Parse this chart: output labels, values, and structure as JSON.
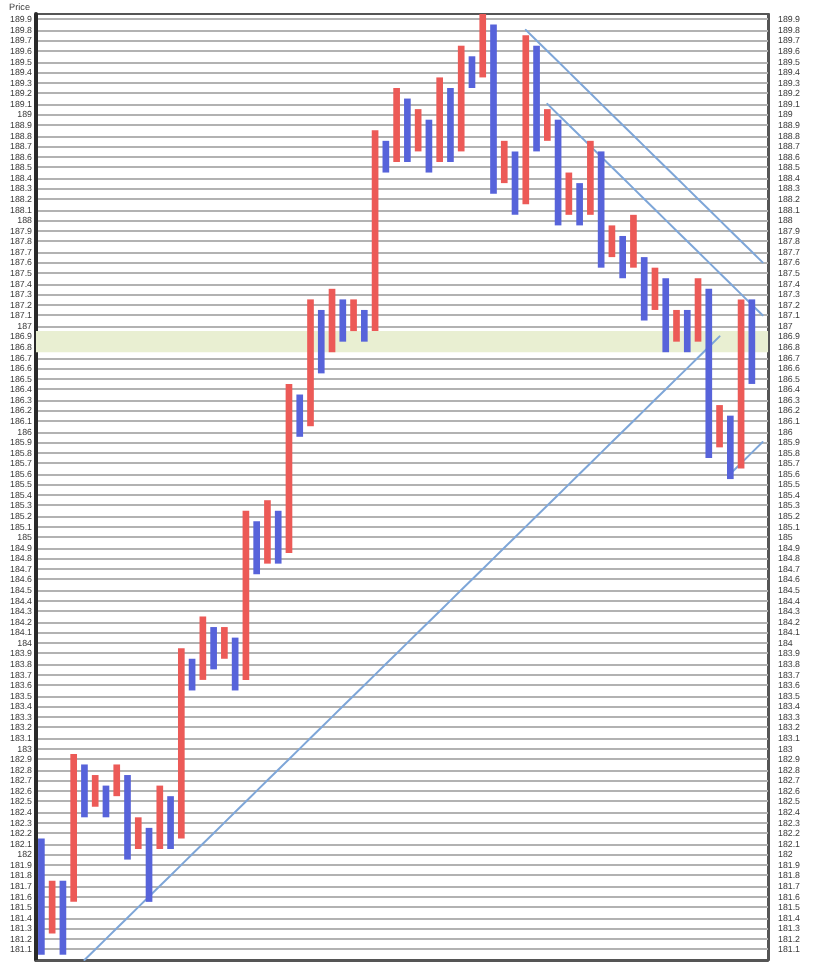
{
  "chart_data": {
    "type": "bar",
    "ylabel": "Price",
    "categories": [
      null,
      null,
      null,
      null,
      null,
      null,
      null,
      null,
      null,
      null,
      null,
      null,
      null,
      null,
      null,
      null,
      null,
      null,
      null,
      null,
      null,
      null,
      null,
      null,
      null,
      null,
      null,
      null,
      null,
      null,
      null,
      null,
      null,
      null,
      null,
      null,
      null,
      null,
      null,
      null,
      null,
      null,
      null,
      null,
      null,
      null,
      null,
      null,
      null,
      null,
      null,
      null,
      null,
      null,
      null,
      null,
      null,
      null,
      null,
      null,
      null,
      null,
      null,
      null,
      null,
      null,
      null,
      null
    ],
    "ylim": [
      181,
      189.95
    ],
    "y2lim": [
      181,
      189.95
    ],
    "yticks": [
      181.1,
      181.2,
      181.3,
      181.4,
      181.5,
      181.6,
      181.7,
      181.8,
      181.9,
      182,
      182.1,
      182.2,
      182.3,
      182.4,
      182.5,
      182.6,
      182.7,
      182.8,
      182.9,
      183,
      183.1,
      183.2,
      183.3,
      183.4,
      183.5,
      183.6,
      183.7,
      183.8,
      183.9,
      184,
      184.1,
      184.2,
      184.3,
      184.4,
      184.5,
      184.6,
      184.7,
      184.8,
      184.9,
      185,
      185.1,
      185.2,
      185.3,
      185.4,
      185.5,
      185.6,
      185.7,
      185.8,
      185.9,
      186,
      186.1,
      186.2,
      186.3,
      186.4,
      186.5,
      186.6,
      186.7,
      186.8,
      186.9,
      187,
      187.1,
      187.2,
      187.3,
      187.4,
      187.5,
      187.6,
      187.7,
      187.8,
      187.9,
      188,
      188.1,
      188.2,
      188.3,
      188.4,
      188.5,
      188.6,
      188.7,
      188.8,
      188.9,
      189,
      189.1,
      189.2,
      189.3,
      189.4,
      189.5,
      189.6,
      189.7,
      189.8,
      189.9
    ],
    "y2ticks": [
      181.1,
      181.2,
      181.3,
      181.4,
      181.5,
      181.6,
      181.7,
      181.8,
      181.9,
      182,
      182.1,
      182.2,
      182.3,
      182.4,
      182.5,
      182.6,
      182.7,
      182.8,
      182.9,
      183,
      183.1,
      183.2,
      183.3,
      183.4,
      183.5,
      183.6,
      183.7,
      183.8,
      183.9,
      184,
      184.1,
      184.2,
      184.3,
      184.4,
      184.5,
      184.6,
      184.7,
      184.8,
      184.9,
      185,
      185.1,
      185.2,
      185.3,
      185.4,
      185.5,
      185.6,
      185.7,
      185.8,
      185.9,
      186,
      186.1,
      186.2,
      186.3,
      186.4,
      186.5,
      186.6,
      186.7,
      186.8,
      186.9,
      187,
      187.1,
      187.2,
      187.3,
      187.4,
      187.5,
      187.6,
      187.7,
      187.8,
      187.9,
      188,
      188.1,
      188.2,
      188.3,
      188.4,
      188.5,
      188.6,
      188.7,
      188.8,
      188.9,
      189,
      189.1,
      189.2,
      189.3,
      189.4,
      189.5,
      189.6,
      189.7,
      189.8,
      189.9
    ],
    "tick_labels": "y",
    "grid": "y",
    "bands": [
      {
        "axis": "y",
        "from": 186.75,
        "to": 186.95,
        "color": "#e9efd2"
      }
    ],
    "series": [
      {
        "color": "#ec5a57",
        "base": [
          null,
          181.25,
          null,
          181.55,
          null,
          182.45,
          null,
          182.55,
          null,
          182.05,
          null,
          182.05,
          null,
          182.15,
          null,
          183.65,
          null,
          183.85,
          null,
          183.65,
          null,
          184.75,
          null,
          184.85,
          null,
          186.05,
          null,
          186.75,
          null,
          186.95,
          null,
          186.95,
          null,
          188.55,
          null,
          188.65,
          null,
          188.55,
          null,
          188.65,
          null,
          189.35,
          null,
          188.35,
          null,
          188.15,
          null,
          188.75,
          null,
          188.05,
          null,
          188.05,
          null,
          187.65,
          null,
          187.55,
          null,
          187.15,
          null,
          186.85,
          null,
          186.85,
          null,
          185.85,
          null,
          185.65,
          null,
          null
        ],
        "values": [
          null,
          0.5,
          null,
          1.4,
          null,
          0.3,
          null,
          0.3,
          null,
          0.3,
          null,
          0.6,
          null,
          1.8,
          null,
          0.6,
          null,
          0.3,
          null,
          1.6,
          null,
          0.6,
          null,
          1.6,
          null,
          1.2,
          null,
          0.6,
          null,
          0.3,
          null,
          1.9,
          null,
          0.7,
          null,
          0.4,
          null,
          0.8,
          null,
          1,
          null,
          0.6,
          null,
          0.4,
          null,
          1.6,
          null,
          0.3,
          null,
          0.4,
          null,
          0.7,
          null,
          0.3,
          null,
          0.5,
          null,
          0.4,
          null,
          0.3,
          null,
          0.6,
          null,
          0.4,
          null,
          1.6,
          null,
          null
        ]
      },
      {
        "color": "#5763da",
        "base": [
          181.05,
          null,
          181.05,
          null,
          182.35,
          null,
          182.35,
          null,
          181.95,
          null,
          181.55,
          null,
          182.05,
          null,
          183.55,
          null,
          183.75,
          null,
          183.55,
          null,
          184.65,
          null,
          184.75,
          null,
          185.95,
          null,
          186.55,
          null,
          186.85,
          null,
          186.85,
          null,
          188.45,
          null,
          188.55,
          null,
          188.45,
          null,
          188.55,
          null,
          189.25,
          null,
          188.25,
          null,
          188.05,
          null,
          188.65,
          null,
          187.95,
          null,
          187.95,
          null,
          187.55,
          null,
          187.45,
          null,
          187.05,
          null,
          186.75,
          null,
          186.75,
          null,
          185.75,
          null,
          185.55,
          null,
          186.45,
          null
        ],
        "values": [
          1.1,
          null,
          0.7,
          null,
          0.5,
          null,
          0.3,
          null,
          0.8,
          null,
          0.7,
          null,
          0.5,
          null,
          0.3,
          null,
          0.4,
          null,
          0.5,
          null,
          0.5,
          null,
          0.5,
          null,
          0.4,
          null,
          0.6,
          null,
          0.4,
          null,
          0.3,
          null,
          0.3,
          null,
          0.6,
          null,
          0.5,
          null,
          0.7,
          null,
          0.3,
          null,
          1.6,
          null,
          0.6,
          null,
          1,
          null,
          1,
          null,
          0.4,
          null,
          1.1,
          null,
          0.4,
          null,
          0.6,
          null,
          0.7,
          null,
          0.4,
          null,
          1.6,
          null,
          0.6,
          null,
          0.8,
          null
        ]
      },
      {
        "type": "line",
        "color": "#7ea6d8",
        "values": [
          null,
          null,
          null,
          null,
          181,
          181.1,
          181.2,
          181.3,
          181.4,
          181.5,
          181.6,
          181.7,
          181.8,
          181.9,
          182,
          182.1,
          182.2,
          182.3,
          182.4,
          182.5,
          182.6,
          182.7,
          182.8,
          182.9,
          183,
          183.1,
          183.2,
          183.3,
          183.4,
          183.5,
          183.6,
          183.7,
          183.8,
          183.9,
          184,
          184.1,
          184.2,
          184.3,
          184.4,
          184.5,
          184.6,
          184.7,
          184.8,
          184.9,
          185,
          185.1,
          185.2,
          185.3,
          185.4,
          185.5,
          185.6,
          185.7,
          185.8,
          185.9,
          186,
          186.1,
          186.2,
          186.3,
          186.4,
          186.5,
          186.6,
          186.7,
          186.8,
          186.9,
          null,
          null,
          null,
          null
        ]
      },
      {
        "type": "line",
        "color": "#7ea6d8",
        "values": [
          null,
          null,
          null,
          null,
          null,
          null,
          null,
          null,
          null,
          null,
          null,
          null,
          null,
          null,
          null,
          null,
          null,
          null,
          null,
          null,
          null,
          null,
          null,
          null,
          null,
          null,
          null,
          null,
          null,
          null,
          null,
          null,
          null,
          null,
          null,
          null,
          null,
          null,
          null,
          null,
          null,
          null,
          null,
          null,
          null,
          189.8,
          189.7,
          189.6,
          189.5,
          189.4,
          189.3,
          189.2,
          189.1,
          189,
          188.9,
          188.8,
          188.7,
          188.6,
          188.5,
          188.4,
          188.3,
          188.2,
          188.1,
          188,
          187.9,
          187.8,
          187.7,
          187.6
        ]
      },
      {
        "type": "line",
        "color": "#7ea6d8",
        "values": [
          null,
          null,
          null,
          null,
          null,
          null,
          null,
          null,
          null,
          null,
          null,
          null,
          null,
          null,
          null,
          null,
          null,
          null,
          null,
          null,
          null,
          null,
          null,
          null,
          null,
          null,
          null,
          null,
          null,
          null,
          null,
          null,
          null,
          null,
          null,
          null,
          null,
          null,
          null,
          null,
          null,
          null,
          null,
          null,
          null,
          null,
          null,
          189.1,
          189,
          188.9,
          188.8,
          188.7,
          188.6,
          188.5,
          188.4,
          188.3,
          188.2,
          188.1,
          188,
          187.9,
          187.8,
          187.7,
          187.6,
          187.5,
          187.4,
          187.3,
          187.2,
          187.1
        ]
      },
      {
        "type": "line",
        "color": "#7ea6d8",
        "values": [
          null,
          null,
          null,
          null,
          null,
          null,
          null,
          null,
          null,
          null,
          null,
          null,
          null,
          null,
          null,
          null,
          null,
          null,
          null,
          null,
          null,
          null,
          null,
          null,
          null,
          null,
          null,
          null,
          null,
          null,
          null,
          null,
          null,
          null,
          null,
          null,
          null,
          null,
          null,
          null,
          null,
          null,
          null,
          null,
          null,
          null,
          null,
          null,
          null,
          null,
          null,
          null,
          null,
          null,
          null,
          null,
          null,
          null,
          null,
          null,
          null,
          null,
          null,
          null,
          185.6,
          185.7,
          185.8,
          185.9
        ]
      }
    ]
  }
}
